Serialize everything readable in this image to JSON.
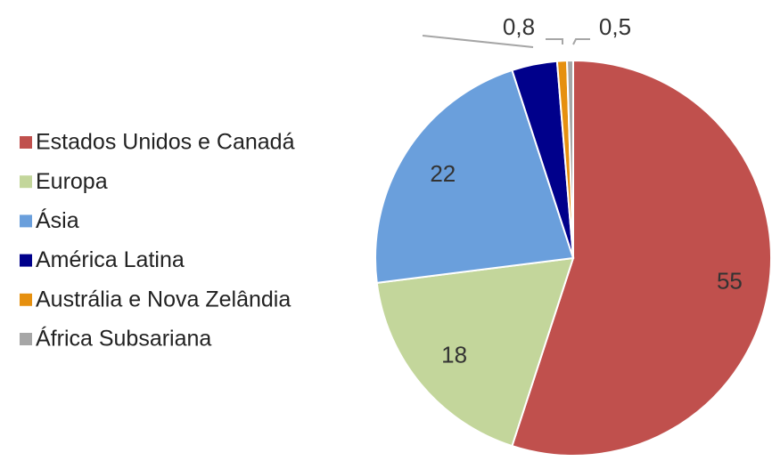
{
  "chart_data": {
    "type": "pie",
    "categories": [
      "Estados Unidos e Canadá",
      "Europa",
      "Ásia",
      "América Latina",
      "Austrália e Nova Zelândia",
      "África Subsariana"
    ],
    "values": [
      55,
      18,
      22,
      3.7,
      0.8,
      0.5
    ],
    "value_labels": [
      "55",
      "18",
      "22",
      null,
      "0,8",
      "0,5"
    ],
    "colors": [
      "#c0504d",
      "#c3d69b",
      "#6a9fdc",
      "#00008b",
      "#e6900f",
      "#a6a6a6"
    ],
    "legend": "left"
  }
}
